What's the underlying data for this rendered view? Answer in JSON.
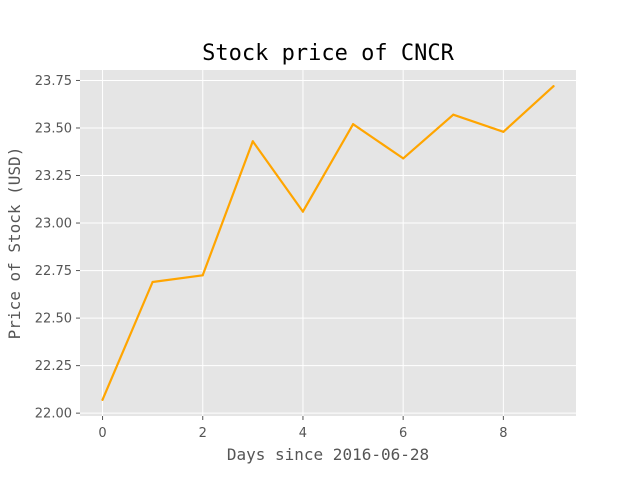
{
  "chart_data": {
    "type": "line",
    "title": "Stock price of CNCR",
    "xlabel": "Days since 2016-06-28",
    "ylabel": "Price of Stock (USD)",
    "x": [
      0,
      1,
      2,
      3,
      4,
      5,
      6,
      7,
      8,
      9
    ],
    "series": [
      {
        "values": [
          22.07,
          22.69,
          22.725,
          23.43,
          23.06,
          23.52,
          23.34,
          23.57,
          23.48,
          23.72
        ],
        "color": "#ffa500"
      }
    ],
    "xlim": [
      -0.45,
      9.45
    ],
    "ylim": [
      21.985,
      23.805
    ],
    "xticks": [
      0,
      2,
      4,
      6,
      8
    ],
    "xtick_labels": [
      "0",
      "2",
      "4",
      "6",
      "8"
    ],
    "yticks": [
      22.0,
      22.25,
      22.5,
      22.75,
      23.0,
      23.25,
      23.5,
      23.75
    ],
    "ytick_labels": [
      "22.00",
      "22.25",
      "22.50",
      "22.75",
      "23.00",
      "23.25",
      "23.50",
      "23.75"
    ],
    "grid": true,
    "legend": false,
    "style": {
      "plot_background": "#e5e5e5",
      "grid_color": "#ffffff",
      "tick_color": "#555555",
      "title_color": "#000000"
    }
  }
}
